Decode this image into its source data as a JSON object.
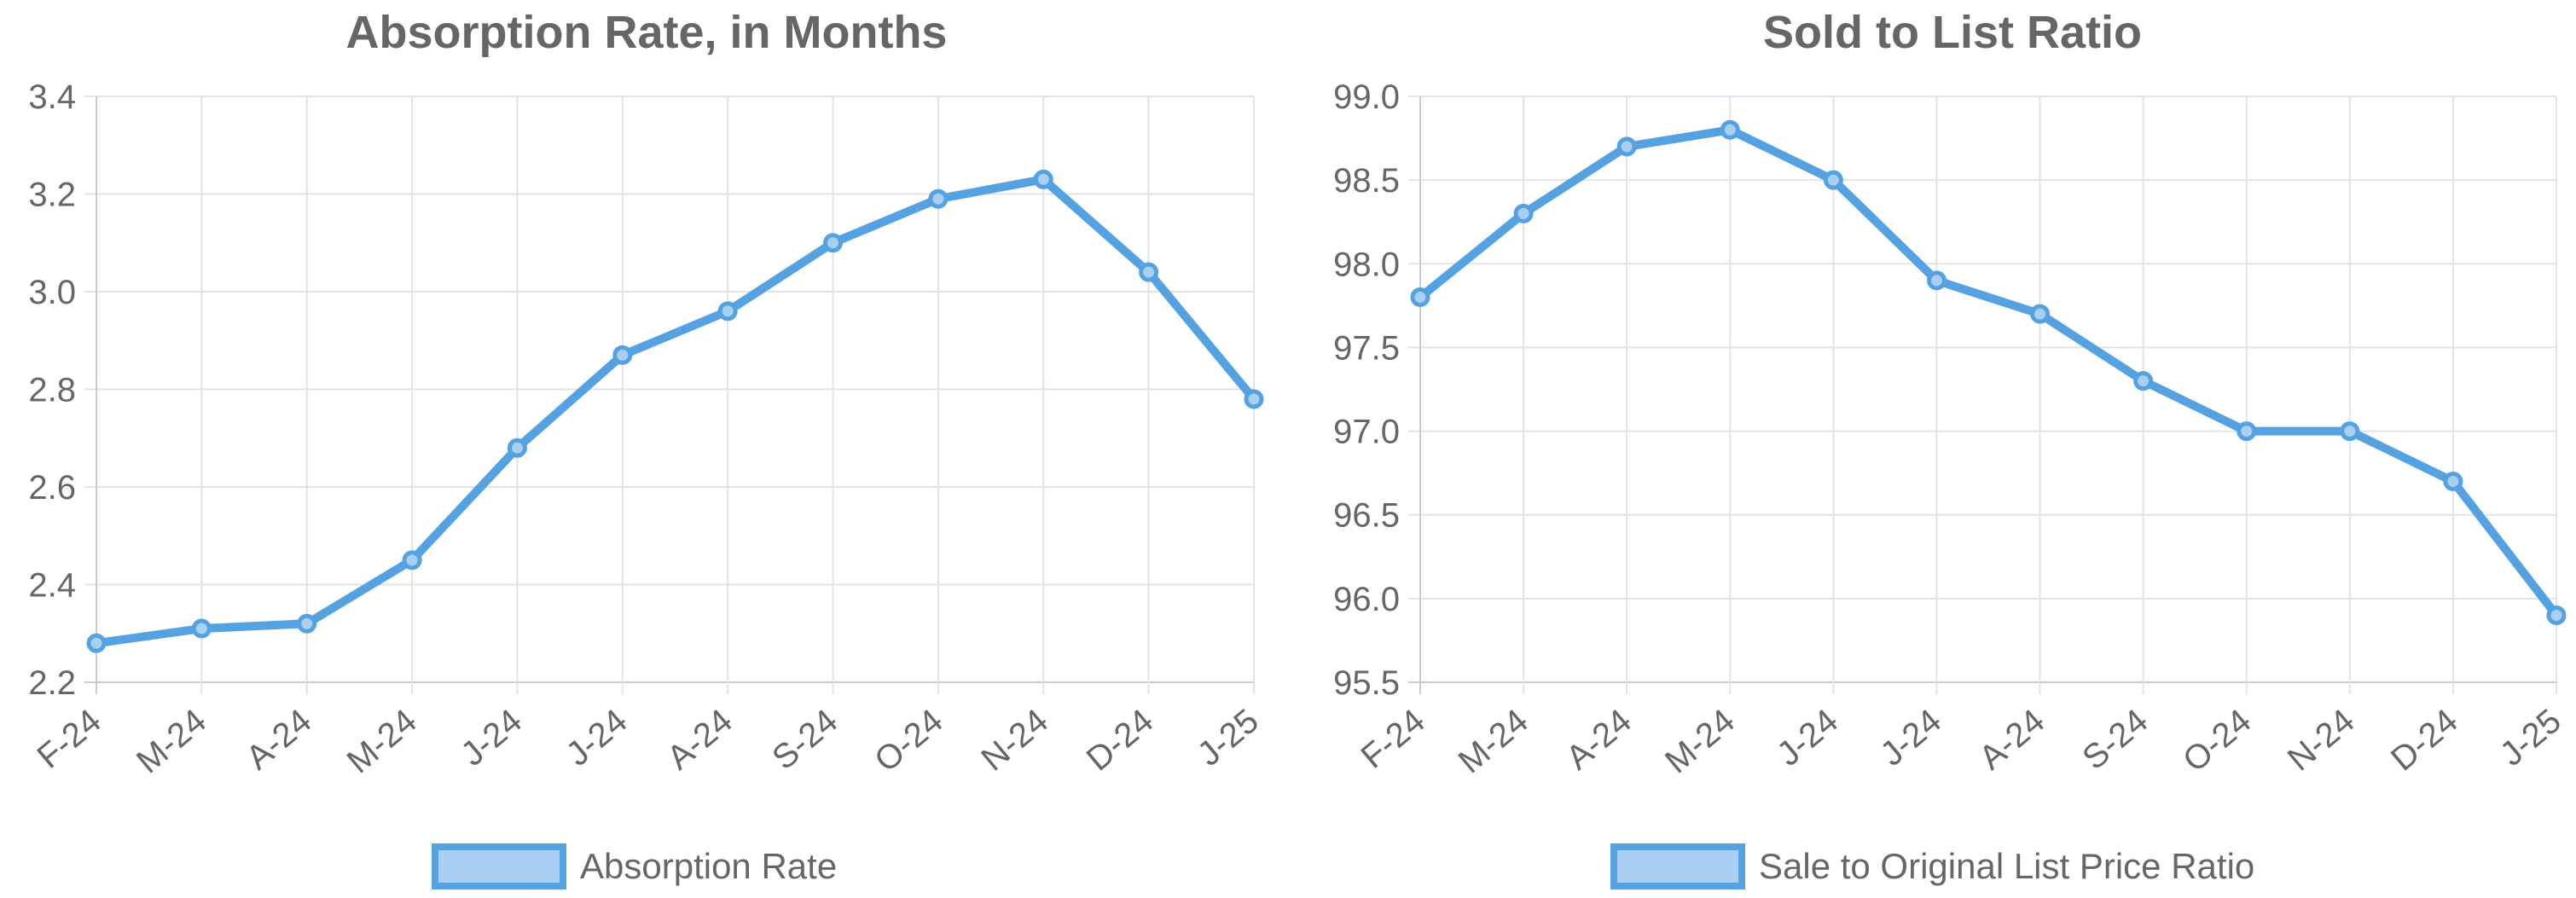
{
  "colors": {
    "line": "#55a2e3",
    "legend_fill": "#a9d0f3",
    "grid": "#e3e3e3",
    "axis": "#cccccc",
    "text": "#666666"
  },
  "chart_data": [
    {
      "type": "line",
      "title": "Absorption Rate, in Months",
      "categories": [
        "F-24",
        "M-24",
        "A-24",
        "M-24",
        "J-24",
        "J-24",
        "A-24",
        "S-24",
        "O-24",
        "N-24",
        "D-24",
        "J-25"
      ],
      "series": [
        {
          "name": "Absorption Rate",
          "values": [
            2.28,
            2.31,
            2.32,
            2.45,
            2.68,
            2.87,
            2.96,
            3.1,
            3.19,
            3.23,
            3.04,
            2.78
          ]
        }
      ],
      "ylim": [
        2.2,
        3.4
      ],
      "yticks": [
        "2.2",
        "2.4",
        "2.6",
        "2.8",
        "3.0",
        "3.2",
        "3.4"
      ],
      "xlabel": "",
      "ylabel": "",
      "grid": true,
      "legend": "bottom"
    },
    {
      "type": "line",
      "title": "Sold to List Ratio",
      "categories": [
        "F-24",
        "M-24",
        "A-24",
        "M-24",
        "J-24",
        "J-24",
        "A-24",
        "S-24",
        "O-24",
        "N-24",
        "D-24",
        "J-25"
      ],
      "series": [
        {
          "name": "Sale to Original List Price Ratio",
          "values": [
            97.8,
            98.3,
            98.7,
            98.8,
            98.5,
            97.9,
            97.7,
            97.3,
            97.0,
            97.0,
            96.7,
            95.9
          ]
        }
      ],
      "ylim": [
        95.5,
        99.0
      ],
      "yticks": [
        "95.5",
        "96.0",
        "96.5",
        "97.0",
        "97.5",
        "98.0",
        "98.5",
        "99.0"
      ],
      "xlabel": "",
      "ylabel": "",
      "grid": true,
      "legend": "bottom"
    }
  ]
}
